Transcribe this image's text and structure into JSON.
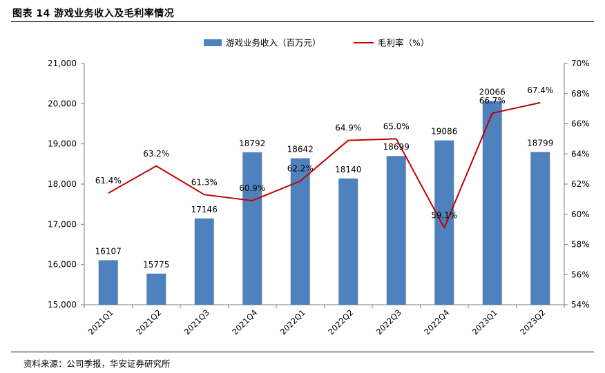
{
  "figure_title": "图表 14 游戏业务收入及毛利率情况",
  "source_note": "资料来源：公司季报，华安证券研究所",
  "colors": {
    "bar": "#4F81BD",
    "line": "#C00000",
    "axis": "#7F7F7F"
  },
  "chart_data": {
    "type": "bar",
    "categories": [
      "2021Q1",
      "2021Q2",
      "2021Q3",
      "2021Q4",
      "2022Q1",
      "2022Q2",
      "2022Q3",
      "2022Q4",
      "2023Q1",
      "2023Q2"
    ],
    "series": [
      {
        "name": "游戏业务收入（百万元）",
        "type": "bar",
        "axis": "left",
        "values": [
          16107,
          15775,
          17146,
          18792,
          18642,
          18140,
          18699,
          19086,
          20066,
          18799
        ],
        "labels": [
          "16107",
          "15775",
          "17146",
          "18792",
          "18642",
          "18140",
          "18699",
          "19086",
          "20066",
          "18799"
        ]
      },
      {
        "name": "毛利率（%）",
        "type": "line",
        "axis": "right",
        "values": [
          61.4,
          63.2,
          61.3,
          60.9,
          62.2,
          64.9,
          65.0,
          59.1,
          66.7,
          67.4
        ],
        "labels": [
          "61.4%",
          "63.2%",
          "61.3%",
          "60.9%",
          "62.2%",
          "64.9%",
          "65.0%",
          "59.1%",
          "66.7%",
          "67.4%"
        ]
      }
    ],
    "y_left": {
      "range": [
        15000,
        21000
      ],
      "ticks": [
        15000,
        16000,
        17000,
        18000,
        19000,
        20000,
        21000
      ],
      "tick_labels": [
        "15,000",
        "16,000",
        "17,000",
        "18,000",
        "19,000",
        "20,000",
        "21,000"
      ]
    },
    "y_right": {
      "range": [
        54,
        70
      ],
      "ticks": [
        54,
        56,
        58,
        60,
        62,
        64,
        66,
        68,
        70
      ],
      "tick_labels": [
        "54%",
        "56%",
        "58%",
        "60%",
        "62%",
        "64%",
        "66%",
        "68%",
        "70%"
      ]
    },
    "grid": false,
    "legend_position": "top-center"
  }
}
